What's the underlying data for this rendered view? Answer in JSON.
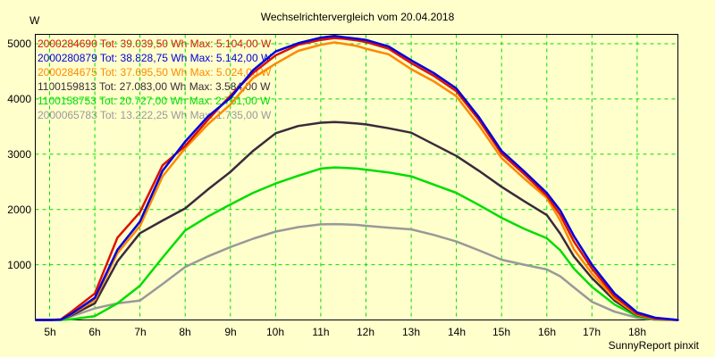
{
  "page": {
    "background": "#ffffcc"
  },
  "chart_data": {
    "type": "line",
    "title": "Wechselrichtervergleich vom 20.04.2018",
    "y_unit": "W",
    "footer": "SunnyReport pinxit",
    "legend_format": "{name} Tot: {tot} Wh Max: {max} W",
    "grid": {
      "on": true,
      "style": "dashed",
      "color": "#00dd00"
    },
    "axes": {
      "x_ticks": [
        "5h",
        "6h",
        "7h",
        "8h",
        "9h",
        "10h",
        "11h",
        "12h",
        "13h",
        "14h",
        "15h",
        "16h",
        "17h",
        "18h"
      ],
      "x_tick_hours": [
        5,
        6,
        7,
        8,
        9,
        10,
        11,
        12,
        13,
        14,
        15,
        16,
        17,
        18
      ],
      "y_ticks": [
        1000,
        2000,
        3000,
        4000,
        5000
      ],
      "xlim_hours": [
        4.67,
        18.92
      ],
      "ylim": [
        0,
        5180
      ]
    },
    "x_hours": [
      4.7,
      5,
      5.25,
      5.5,
      6,
      6.5,
      7,
      7.5,
      8,
      8.5,
      9,
      9.5,
      10,
      10.5,
      11,
      11.3,
      11.5,
      11.8,
      12,
      12.5,
      13,
      13.5,
      14,
      14.5,
      15,
      15.5,
      16,
      16.3,
      16.6,
      17,
      17.5,
      18,
      18.4,
      18.9
    ],
    "draw_order": [
      5,
      4,
      3,
      2,
      0,
      1
    ],
    "series": [
      {
        "name": "2000284690",
        "tot": "39.039,50",
        "max": "5.104,00",
        "color": "#dd1100",
        "values": [
          0,
          0,
          10,
          160,
          480,
          1490,
          1950,
          2800,
          3150,
          3620,
          4060,
          4470,
          4790,
          4980,
          5070,
          5104,
          5090,
          5060,
          5030,
          4910,
          4650,
          4420,
          4140,
          3620,
          3010,
          2640,
          2250,
          1900,
          1420,
          930,
          430,
          110,
          30,
          0
        ]
      },
      {
        "name": "2000280879",
        "tot": "38.828,75",
        "max": "5.142,00",
        "color": "#0000dd",
        "values": [
          0,
          0,
          5,
          120,
          400,
          1270,
          1780,
          2700,
          3230,
          3680,
          4020,
          4520,
          4860,
          5010,
          5110,
          5142,
          5120,
          5090,
          5070,
          4950,
          4700,
          4470,
          4190,
          3670,
          3060,
          2690,
          2300,
          1980,
          1520,
          1000,
          480,
          135,
          40,
          0
        ]
      },
      {
        "name": "2000284675",
        "tot": "37.695,50",
        "max": "5.024,00",
        "color": "#ff8800",
        "values": [
          0,
          0,
          5,
          110,
          360,
          1210,
          1700,
          2600,
          3110,
          3540,
          3900,
          4380,
          4640,
          4870,
          4980,
          5024,
          5000,
          4960,
          4910,
          4810,
          4540,
          4320,
          4050,
          3520,
          2930,
          2560,
          2210,
          1800,
          1280,
          840,
          390,
          95,
          20,
          0
        ]
      },
      {
        "name": "1100159813",
        "tot": "27.083,00",
        "max": "3.584,00",
        "color": "#3a2a3a",
        "values": [
          0,
          0,
          5,
          90,
          300,
          1060,
          1570,
          1800,
          2020,
          2360,
          2680,
          3060,
          3380,
          3510,
          3570,
          3584,
          3575,
          3555,
          3540,
          3470,
          3390,
          3180,
          2970,
          2700,
          2410,
          2150,
          1900,
          1560,
          1150,
          760,
          350,
          85,
          15,
          0
        ]
      },
      {
        "name": "1100158753",
        "tot": "20.727,00",
        "max": "2.761,00",
        "color": "#00dd00",
        "values": [
          0,
          0,
          0,
          15,
          70,
          300,
          620,
          1130,
          1620,
          1870,
          2090,
          2300,
          2470,
          2610,
          2740,
          2761,
          2755,
          2740,
          2720,
          2670,
          2600,
          2450,
          2300,
          2080,
          1850,
          1650,
          1480,
          1260,
          930,
          600,
          280,
          65,
          10,
          0
        ]
      },
      {
        "name": "2000065783",
        "tot": "13.222,25",
        "max": "1.735,00",
        "color": "#999999",
        "values": [
          0,
          0,
          10,
          70,
          210,
          300,
          350,
          650,
          960,
          1150,
          1320,
          1470,
          1600,
          1680,
          1730,
          1735,
          1730,
          1720,
          1705,
          1670,
          1640,
          1540,
          1420,
          1260,
          1090,
          1000,
          915,
          790,
          590,
          330,
          150,
          40,
          5,
          0
        ]
      }
    ]
  }
}
